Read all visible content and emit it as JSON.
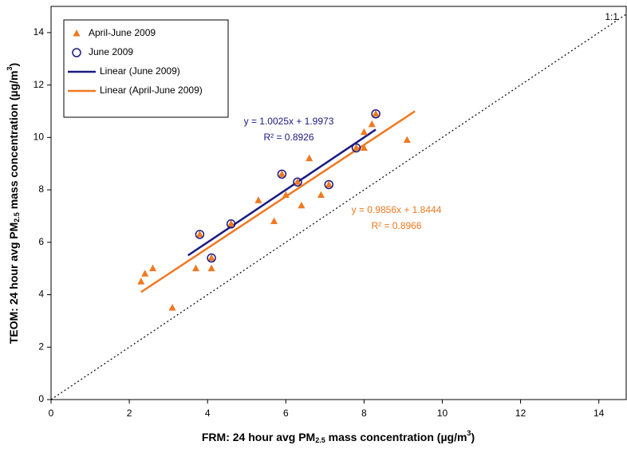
{
  "chart_data": {
    "type": "scatter",
    "xlabel": [
      "FRM:  24 hour avg PM",
      "2.5",
      " mass concentration (µg/m",
      "3",
      ")"
    ],
    "ylabel": [
      "TEOM:  24 hour avg PM",
      "2.5",
      " mass concentration (µg/m",
      "3",
      ")"
    ],
    "xlim": [
      0,
      14.7
    ],
    "ylim": [
      0,
      15
    ],
    "xticks": [
      0,
      2,
      4,
      6,
      8,
      10,
      12,
      14
    ],
    "yticks": [
      0,
      2,
      4,
      6,
      8,
      10,
      12,
      14
    ],
    "series": [
      {
        "name": "April-June 2009",
        "color": "#f07820",
        "marker": "triangle",
        "x": [
          2.3,
          2.4,
          2.6,
          3.1,
          3.7,
          3.8,
          4.1,
          4.1,
          4.6,
          5.3,
          5.7,
          5.9,
          6.0,
          6.3,
          6.4,
          6.6,
          6.9,
          7.1,
          7.8,
          8.0,
          8.0,
          8.2,
          8.3,
          9.1
        ],
        "values": [
          4.5,
          4.8,
          5.0,
          3.5,
          5.0,
          6.3,
          5.0,
          5.4,
          6.7,
          7.6,
          6.8,
          8.6,
          7.8,
          8.3,
          7.4,
          9.2,
          7.8,
          8.2,
          9.6,
          10.2,
          9.6,
          10.5,
          10.9,
          9.9
        ]
      },
      {
        "name": "June 2009",
        "color": "#1a1a80",
        "marker": "circle",
        "x": [
          3.8,
          4.1,
          4.6,
          5.9,
          6.3,
          7.1,
          7.8,
          8.3
        ],
        "values": [
          6.3,
          5.4,
          6.7,
          8.6,
          8.3,
          8.2,
          9.6,
          10.9
        ]
      },
      {
        "name": "Linear (June 2009)",
        "color": "#1a1a80",
        "marker": "line",
        "x": [
          3.5,
          8.3
        ],
        "values": [
          5.5,
          10.3
        ]
      },
      {
        "name": "Linear (April-June 2009)",
        "color": "#f07820",
        "marker": "line",
        "x": [
          2.3,
          9.3
        ],
        "values": [
          4.1,
          11.0
        ]
      },
      {
        "name": "1:1",
        "color": "#000000",
        "marker": "dotted",
        "x": [
          0,
          14.7
        ],
        "values": [
          0,
          14.7
        ]
      }
    ],
    "annotations": [
      {
        "color": "#1a1a80",
        "lines": [
          "y = 1.0025x + 1.9973",
          "R² = 0.8926"
        ]
      },
      {
        "color": "#f07820",
        "lines": [
          "y = 0.9856x + 1.8444",
          "R² = 0.8966"
        ]
      }
    ]
  }
}
